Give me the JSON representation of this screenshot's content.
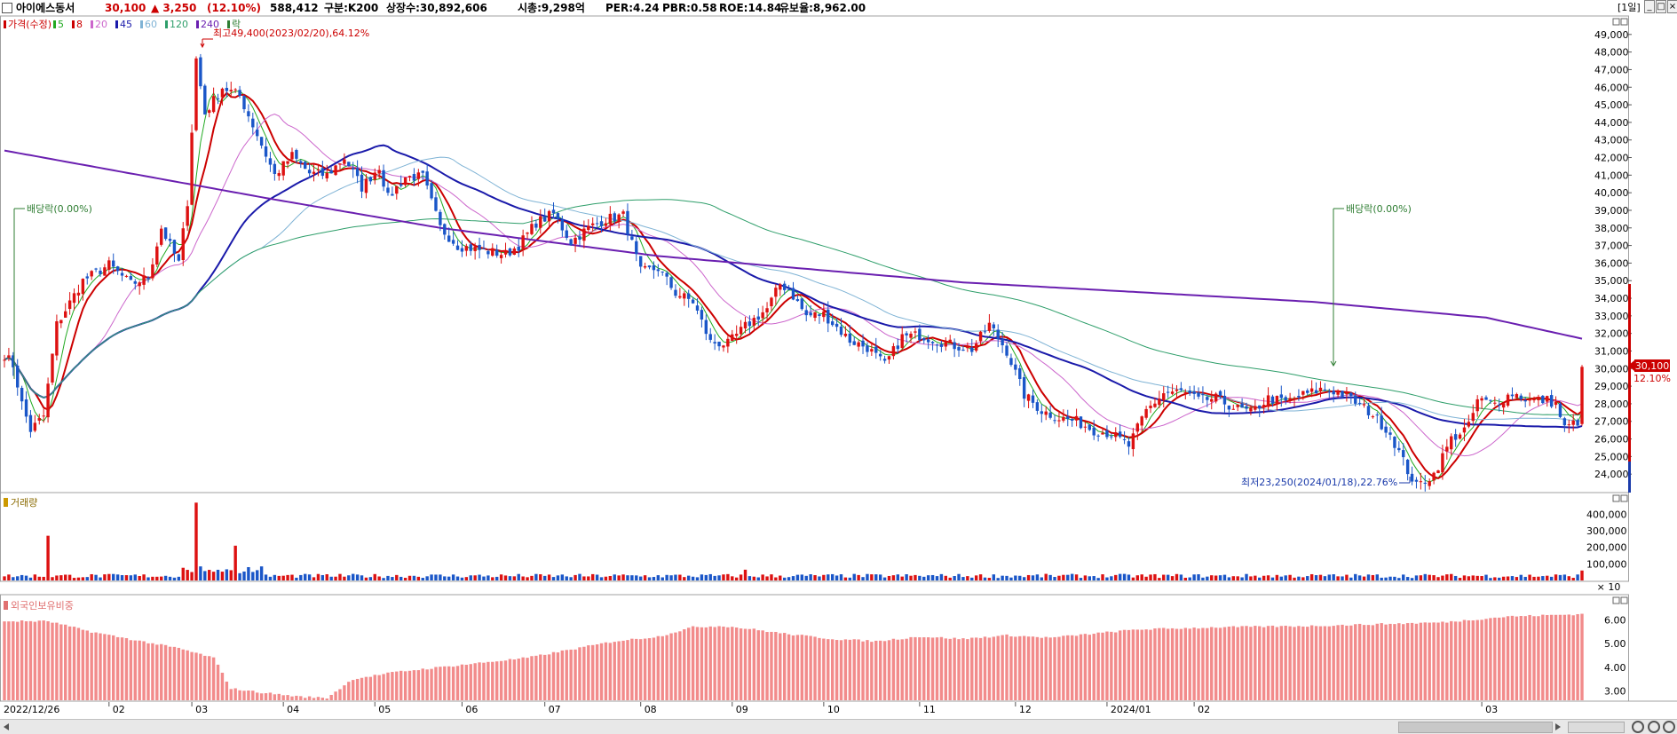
{
  "header": {
    "stock_name": "아이에스동서",
    "price": "30,100",
    "change": "▲ 3,250",
    "change_pct": "(12.10%)",
    "volume": "588,412",
    "category": "구분:K200",
    "shares": "상장수:30,892,606",
    "market_cap": "시총:9,298억",
    "per": "PER:4.24",
    "pbr": "PBR:0.58",
    "roe": "ROE:14.84",
    "float": "유보율:8,962.00",
    "period_button": "[1일]"
  },
  "price_panel": {
    "legend": [
      {
        "text": "가격(수정)",
        "color": "#cc0000"
      },
      {
        "text": "5",
        "color": "#22aa22"
      },
      {
        "text": "8",
        "color": "#cc0000"
      },
      {
        "text": "20",
        "color": "#cc66cc"
      },
      {
        "text": "45",
        "color": "#1a1aaa"
      },
      {
        "text": "60",
        "color": "#7fb3d5"
      },
      {
        "text": "120",
        "color": "#2e9e6a"
      },
      {
        "text": "240",
        "color": "#6a1fb0"
      },
      {
        "text": "락",
        "color": "#2e7d32"
      }
    ],
    "high_annotation": "최고49,400(2023/02/20),64.12%",
    "low_annotation": "최저23,250(2024/01/18),22.76%",
    "dividend_label": "배당락(0.00%)",
    "last_price_label": "30,100",
    "last_pct_label": "12.10%"
  },
  "volume_panel": {
    "title": "거래량",
    "unit": "× 10"
  },
  "foreign_panel": {
    "title": "외국인보유비중"
  },
  "chart_data": {
    "type": "candlestick",
    "y_price_ticks": [
      "24,000",
      "25,000",
      "26,000",
      "27,000",
      "28,000",
      "29,000",
      "30,000",
      "31,000",
      "32,000",
      "33,000",
      "34,000",
      "35,000",
      "36,000",
      "37,000",
      "38,000",
      "39,000",
      "40,000",
      "41,000",
      "42,000",
      "43,000",
      "44,000",
      "45,000",
      "46,000",
      "47,000",
      "48,000",
      "49,000"
    ],
    "price_ylim": [
      23000,
      50000
    ],
    "volume_ticks": [
      "100,000",
      "200,000",
      "300,000",
      "400,000"
    ],
    "volume_ylim": [
      0,
      520000
    ],
    "foreign_ticks": [
      "3.00",
      "4.00",
      "5.00",
      "6.00"
    ],
    "foreign_ylim": [
      2.6,
      7.0
    ],
    "x_labels": [
      "2022/12/26",
      "02",
      "03",
      "04",
      "05",
      "06",
      "07",
      "08",
      "09",
      "10",
      "11",
      "12",
      "2024/01",
      "02",
      "03"
    ],
    "x_label_months": [
      0,
      1,
      2,
      3,
      4,
      5,
      6,
      7,
      8,
      9,
      10,
      11,
      12,
      13,
      14
    ],
    "price_anchors": [
      [
        0,
        30800
      ],
      [
        2,
        30200
      ],
      [
        4,
        28000
      ],
      [
        6,
        26500
      ],
      [
        9,
        27300
      ],
      [
        12,
        32500
      ],
      [
        18,
        35000
      ],
      [
        24,
        35900
      ],
      [
        29,
        34800
      ],
      [
        33,
        35200
      ],
      [
        36,
        38000
      ],
      [
        40,
        36000
      ],
      [
        42,
        39500
      ],
      [
        44,
        47600
      ],
      [
        46,
        44500
      ],
      [
        50,
        46000
      ],
      [
        54,
        45500
      ],
      [
        58,
        43300
      ],
      [
        62,
        41000
      ],
      [
        66,
        42100
      ],
      [
        70,
        41100
      ],
      [
        74,
        41000
      ],
      [
        78,
        42000
      ],
      [
        82,
        40300
      ],
      [
        86,
        41500
      ],
      [
        88,
        39700
      ],
      [
        92,
        40900
      ],
      [
        96,
        40900
      ],
      [
        100,
        38000
      ],
      [
        104,
        37000
      ],
      [
        110,
        36700
      ],
      [
        115,
        36500
      ],
      [
        118,
        37000
      ],
      [
        122,
        38300
      ],
      [
        126,
        38800
      ],
      [
        130,
        37200
      ],
      [
        134,
        38000
      ],
      [
        138,
        38500
      ],
      [
        142,
        38700
      ],
      [
        146,
        35500
      ],
      [
        150,
        35700
      ],
      [
        154,
        34300
      ],
      [
        158,
        33800
      ],
      [
        162,
        31500
      ],
      [
        166,
        31400
      ],
      [
        170,
        32400
      ],
      [
        175,
        33400
      ],
      [
        178,
        34800
      ],
      [
        180,
        34500
      ],
      [
        184,
        33000
      ],
      [
        188,
        33100
      ],
      [
        194,
        31600
      ],
      [
        198,
        31200
      ],
      [
        202,
        30200
      ],
      [
        206,
        31800
      ],
      [
        210,
        31900
      ],
      [
        214,
        31600
      ],
      [
        218,
        31300
      ],
      [
        222,
        31100
      ],
      [
        226,
        32500
      ],
      [
        230,
        31000
      ],
      [
        234,
        28500
      ],
      [
        238,
        27600
      ],
      [
        242,
        27200
      ],
      [
        246,
        27000
      ],
      [
        250,
        26500
      ],
      [
        254,
        26300
      ],
      [
        258,
        25600
      ],
      [
        262,
        27600
      ],
      [
        266,
        28600
      ],
      [
        270,
        28700
      ],
      [
        274,
        28200
      ],
      [
        278,
        28300
      ],
      [
        282,
        27800
      ],
      [
        286,
        27500
      ],
      [
        290,
        28300
      ],
      [
        294,
        28100
      ],
      [
        298,
        28500
      ],
      [
        302,
        28800
      ],
      [
        306,
        28700
      ],
      [
        310,
        28100
      ],
      [
        314,
        27400
      ],
      [
        318,
        26300
      ],
      [
        322,
        24200
      ],
      [
        324,
        23300
      ],
      [
        328,
        24000
      ],
      [
        332,
        26000
      ],
      [
        336,
        26700
      ],
      [
        338,
        28200
      ],
      [
        342,
        28000
      ],
      [
        346,
        28600
      ],
      [
        350,
        28200
      ],
      [
        354,
        28200
      ],
      [
        356,
        28000
      ],
      [
        358,
        26600
      ],
      [
        361,
        27000
      ],
      [
        362,
        30100
      ]
    ],
    "volume_spikes": [
      [
        10,
        270000
      ],
      [
        44,
        470000
      ],
      [
        53,
        210000
      ],
      [
        170,
        65000
      ],
      [
        337,
        30000
      ],
      [
        362,
        60000
      ]
    ],
    "foreign_anchors": [
      [
        0,
        5.95
      ],
      [
        10,
        5.95
      ],
      [
        20,
        5.5
      ],
      [
        30,
        5.15
      ],
      [
        40,
        4.8
      ],
      [
        48,
        4.4
      ],
      [
        52,
        3.1
      ],
      [
        58,
        2.95
      ],
      [
        68,
        2.75
      ],
      [
        74,
        2.7
      ],
      [
        80,
        3.5
      ],
      [
        90,
        3.8
      ],
      [
        100,
        4.0
      ],
      [
        120,
        4.4
      ],
      [
        140,
        5.1
      ],
      [
        150,
        5.3
      ],
      [
        158,
        5.7
      ],
      [
        165,
        5.75
      ],
      [
        172,
        5.6
      ],
      [
        180,
        5.4
      ],
      [
        190,
        5.2
      ],
      [
        200,
        5.1
      ],
      [
        210,
        5.3
      ],
      [
        220,
        5.2
      ],
      [
        230,
        5.35
      ],
      [
        240,
        5.25
      ],
      [
        260,
        5.6
      ],
      [
        280,
        5.7
      ],
      [
        300,
        5.75
      ],
      [
        310,
        5.8
      ],
      [
        320,
        5.85
      ],
      [
        330,
        5.9
      ],
      [
        345,
        6.15
      ],
      [
        362,
        6.25
      ]
    ]
  }
}
